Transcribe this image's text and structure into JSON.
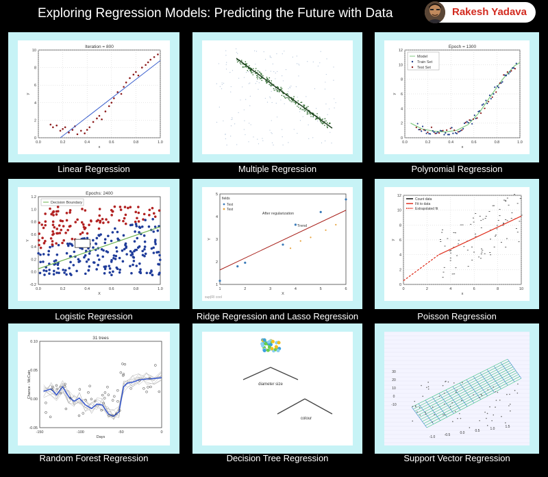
{
  "header": {
    "title": "Exploring Regression Models: Predicting the Future with Data"
  },
  "author": {
    "name": "Rakesh Yadava"
  },
  "panels": [
    {
      "caption": "Linear Regression"
    },
    {
      "caption": "Multiple Regression"
    },
    {
      "caption": "Polynomial Regression"
    },
    {
      "caption": "Logistic Regression"
    },
    {
      "caption": "Ridge Regression and Lasso Regression"
    },
    {
      "caption": "Poisson Regression"
    },
    {
      "caption": "Random Forest Regression"
    },
    {
      "caption": "Decision Tree Regression"
    },
    {
      "caption": "Support Vector Regression"
    }
  ],
  "chart_data": [
    {
      "type": "scatter",
      "title": "Iteration = 800",
      "xlabel": "x",
      "ylabel": "y",
      "xlim": [
        0,
        1
      ],
      "ylim": [
        0,
        10
      ],
      "x_ticks": [
        "0.0",
        "0.2",
        "0.4",
        "0.6",
        "0.8",
        "1.0"
      ],
      "y_ticks": [
        "0",
        "2",
        "4",
        "6",
        "8",
        "10"
      ],
      "points": [
        [
          0.1,
          1.5
        ],
        [
          0.12,
          1.2
        ],
        [
          0.15,
          1.4
        ],
        [
          0.18,
          0.8
        ],
        [
          0.2,
          1.0
        ],
        [
          0.22,
          1.2
        ],
        [
          0.25,
          0.6
        ],
        [
          0.28,
          0.9
        ],
        [
          0.3,
          1.3
        ],
        [
          0.32,
          0.4
        ],
        [
          0.35,
          0.8
        ],
        [
          0.38,
          0.5
        ],
        [
          0.4,
          0.9
        ],
        [
          0.42,
          1.2
        ],
        [
          0.45,
          1.8
        ],
        [
          0.48,
          2.2
        ],
        [
          0.5,
          2.5
        ],
        [
          0.52,
          2.1
        ],
        [
          0.55,
          3.0
        ],
        [
          0.58,
          3.6
        ],
        [
          0.6,
          4.0
        ],
        [
          0.62,
          4.5
        ],
        [
          0.65,
          5.2
        ],
        [
          0.68,
          5.0
        ],
        [
          0.7,
          5.8
        ],
        [
          0.72,
          6.3
        ],
        [
          0.75,
          6.8
        ],
        [
          0.78,
          7.2
        ],
        [
          0.8,
          7.5
        ],
        [
          0.82,
          7.1
        ],
        [
          0.85,
          8.0
        ],
        [
          0.88,
          8.3
        ],
        [
          0.9,
          8.6
        ],
        [
          0.92,
          8.9
        ],
        [
          0.95,
          9.2
        ],
        [
          0.98,
          9.5
        ]
      ],
      "fit": [
        [
          0.18,
          0.0
        ],
        [
          1.0,
          8.8
        ]
      ]
    },
    {
      "type": "scatter",
      "points_center": [
        0.5,
        0.5
      ]
    },
    {
      "type": "scatter",
      "title": "Epoch = 1300",
      "xlabel": "x",
      "ylabel": "y",
      "xlim": [
        0,
        1
      ],
      "ylim": [
        0,
        12
      ],
      "x_ticks": [
        "0.0",
        "0.2",
        "0.4",
        "0.6",
        "0.8",
        "1.0"
      ],
      "y_ticks": [
        "0",
        "2",
        "4",
        "6",
        "8",
        "10",
        "12"
      ],
      "legend": [
        "Model",
        "Train Set",
        "Test Set"
      ],
      "model": [
        [
          0.05,
          2.0
        ],
        [
          0.15,
          1.2
        ],
        [
          0.25,
          0.9
        ],
        [
          0.35,
          0.8
        ],
        [
          0.45,
          1.0
        ],
        [
          0.55,
          1.8
        ],
        [
          0.65,
          3.5
        ],
        [
          0.75,
          5.8
        ],
        [
          0.85,
          8.0
        ],
        [
          0.95,
          9.8
        ],
        [
          1.0,
          10.3
        ]
      ]
    },
    {
      "type": "scatter",
      "title": "Epochs: 2400",
      "xlabel": "X",
      "ylabel": "Y",
      "xlim": [
        0,
        1
      ],
      "ylim": [
        -0.2,
        1.2
      ],
      "x_ticks": [
        "0.0",
        "0.2",
        "0.4",
        "0.6",
        "0.8",
        "1.0"
      ],
      "y_ticks": [
        "-0.2",
        "0.0",
        "0.2",
        "0.4",
        "0.6",
        "0.8",
        "1.0",
        "1.2"
      ],
      "legend": [
        "Decision Boundary"
      ]
    },
    {
      "type": "scatter",
      "xlabel": "X",
      "ylabel": "Y",
      "xlim": [
        1,
        6
      ],
      "ylim": [
        1,
        6
      ],
      "x_ticks": [
        "1",
        "2",
        "3",
        "4",
        "5",
        "6"
      ],
      "y_ticks": [
        "1",
        "2",
        "3",
        "4",
        "5"
      ],
      "legend_title": "fields",
      "legend": [
        "Test",
        "Test"
      ],
      "annotations": [
        "After regularization",
        "Trend"
      ],
      "watermark": "sup|RI cool",
      "train": [
        [
          1.0,
          1.2
        ],
        [
          1.7,
          2.0
        ],
        [
          2.0,
          2.2
        ],
        [
          3.5,
          3.2
        ],
        [
          4.0,
          4.3
        ],
        [
          5.0,
          5.0
        ],
        [
          6.0,
          5.7
        ]
      ],
      "test": [
        [
          3.8,
          3.0
        ],
        [
          4.2,
          3.4
        ],
        [
          4.6,
          3.6
        ],
        [
          5.2,
          4.0
        ],
        [
          5.6,
          4.3
        ]
      ],
      "fit": [
        [
          1.0,
          1.8
        ],
        [
          6.0,
          5.1
        ]
      ]
    },
    {
      "type": "scatter",
      "xlabel": "x",
      "ylabel": "y",
      "xlim": [
        0,
        10
      ],
      "ylim": [
        0,
        12
      ],
      "x_ticks": [
        "0",
        "2",
        "4",
        "6",
        "8",
        "10"
      ],
      "y_ticks": [
        "0",
        "2",
        "4",
        "6",
        "8",
        "10",
        "12"
      ],
      "legend": [
        "Count data",
        "Fit to data",
        "Extrapolated fit"
      ],
      "fit": [
        [
          3.0,
          4.0
        ],
        [
          10.0,
          9.2
        ]
      ],
      "extrapolated": [
        [
          0.0,
          0.5
        ],
        [
          3.0,
          4.0
        ]
      ]
    },
    {
      "type": "line",
      "title": "31 trees",
      "xlabel": "Days",
      "ylabel": "Chance - McCain",
      "xlim": [
        -160,
        0
      ],
      "ylim": [
        -0.06,
        0.13
      ],
      "x_ticks": [
        "-150",
        "-100",
        "-50",
        "0"
      ],
      "y_ticks": [
        "-0.05",
        "0.00",
        "0.05",
        "0.10"
      ],
      "mean": [
        [
          -155,
          0.02
        ],
        [
          -145,
          0.025
        ],
        [
          -138,
          0.012
        ],
        [
          -130,
          0.03
        ],
        [
          -122,
          0.008
        ],
        [
          -115,
          -0.002
        ],
        [
          -108,
          0.005
        ],
        [
          -100,
          -0.01
        ],
        [
          -92,
          -0.018
        ],
        [
          -85,
          -0.008
        ],
        [
          -78,
          -0.01
        ],
        [
          -70,
          -0.03
        ],
        [
          -63,
          -0.035
        ],
        [
          -56,
          -0.025
        ],
        [
          -50,
          0.03
        ],
        [
          -45,
          0.038
        ],
        [
          -38,
          0.04
        ],
        [
          -30,
          0.045
        ],
        [
          -20,
          0.047
        ],
        [
          -10,
          0.048
        ],
        [
          0,
          0.05
        ]
      ]
    },
    {
      "type": "other",
      "nodes": [
        "diameter size",
        "colour"
      ]
    },
    {
      "type": "other",
      "x_ticks": [
        "-1.0",
        "-0.5",
        "0.0",
        "0.5",
        "1.0",
        "1.5"
      ],
      "z_ticks": [
        "30",
        "20",
        "10",
        "0",
        "-10"
      ]
    }
  ]
}
